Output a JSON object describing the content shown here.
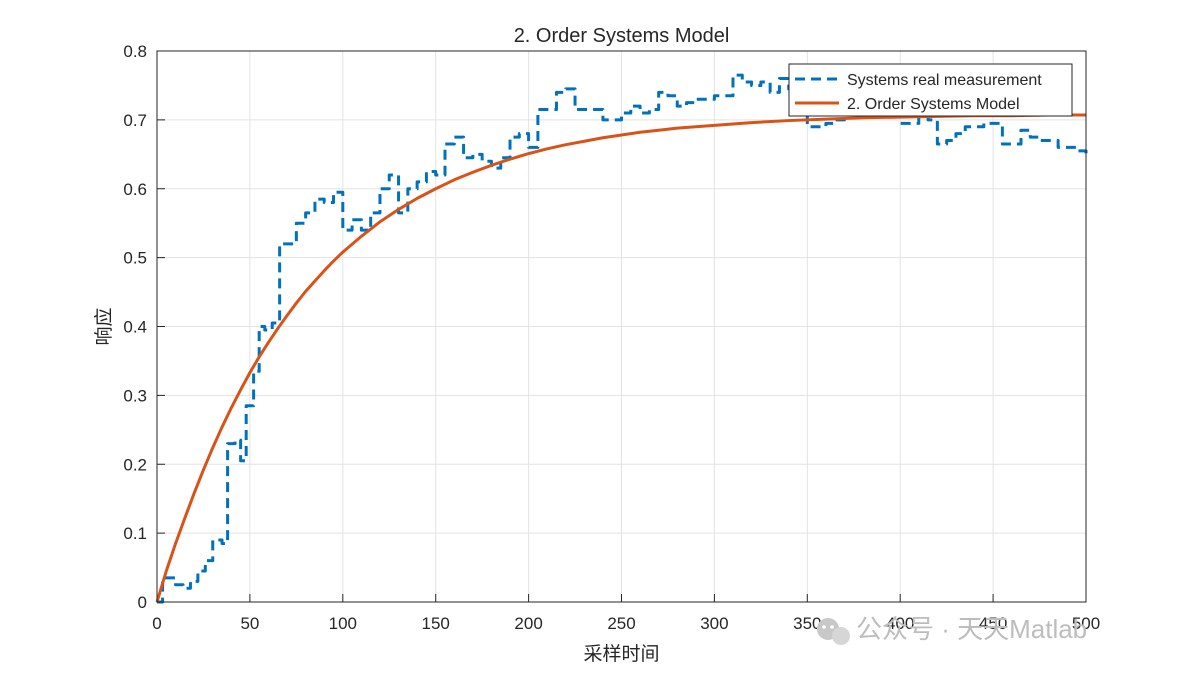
{
  "chart_data": {
    "type": "line",
    "title": "2. Order Systems Model",
    "xlabel": "采样时间",
    "ylabel": "响应",
    "xlim": [
      0,
      500
    ],
    "ylim": [
      0,
      0.8
    ],
    "xticks": [
      0,
      50,
      100,
      150,
      200,
      250,
      300,
      350,
      400,
      450,
      500
    ],
    "yticks": [
      0,
      0.1,
      0.2,
      0.3,
      0.4,
      0.5,
      0.6,
      0.7,
      0.8
    ],
    "xtick_labels": [
      "0",
      "50",
      "100",
      "150",
      "200",
      "250",
      "300",
      "350",
      "400",
      "450",
      "500"
    ],
    "ytick_labels": [
      "0",
      "0.1",
      "0.2",
      "0.3",
      "0.4",
      "0.5",
      "0.6",
      "0.7",
      "0.8"
    ],
    "grid": true,
    "legend_position": "top-right",
    "series": [
      {
        "name": "Systems real measurement",
        "style": "dashed-stairs",
        "color": "#0072BD",
        "x": [
          0,
          3,
          6,
          10,
          14,
          18,
          22,
          26,
          30,
          35,
          38,
          42,
          45,
          48,
          52,
          55,
          58,
          62,
          66,
          70,
          75,
          80,
          85,
          90,
          95,
          100,
          105,
          110,
          115,
          120,
          125,
          130,
          135,
          140,
          145,
          150,
          155,
          160,
          165,
          170,
          175,
          180,
          185,
          190,
          195,
          200,
          205,
          210,
          215,
          220,
          225,
          230,
          235,
          240,
          245,
          250,
          255,
          260,
          265,
          270,
          275,
          280,
          285,
          290,
          295,
          300,
          305,
          310,
          315,
          320,
          325,
          330,
          335,
          340,
          345,
          350,
          355,
          360,
          365,
          370,
          375,
          380,
          385,
          390,
          395,
          400,
          405,
          410,
          415,
          420,
          425,
          430,
          435,
          440,
          445,
          450,
          455,
          460,
          465,
          470,
          475,
          480,
          485,
          490,
          495,
          500
        ],
        "values": [
          0.0,
          0.035,
          0.035,
          0.025,
          0.02,
          0.03,
          0.045,
          0.06,
          0.09,
          0.085,
          0.23,
          0.235,
          0.205,
          0.285,
          0.335,
          0.4,
          0.395,
          0.405,
          0.52,
          0.52,
          0.55,
          0.565,
          0.585,
          0.58,
          0.595,
          0.54,
          0.555,
          0.54,
          0.565,
          0.6,
          0.62,
          0.565,
          0.6,
          0.61,
          0.625,
          0.62,
          0.665,
          0.675,
          0.645,
          0.65,
          0.64,
          0.63,
          0.645,
          0.675,
          0.68,
          0.66,
          0.715,
          0.715,
          0.74,
          0.745,
          0.715,
          0.715,
          0.715,
          0.7,
          0.7,
          0.71,
          0.72,
          0.71,
          0.715,
          0.74,
          0.735,
          0.72,
          0.725,
          0.73,
          0.73,
          0.735,
          0.735,
          0.765,
          0.755,
          0.75,
          0.755,
          0.74,
          0.76,
          0.745,
          0.74,
          0.69,
          0.69,
          0.695,
          0.7,
          0.71,
          0.71,
          0.715,
          0.72,
          0.71,
          0.705,
          0.695,
          0.695,
          0.705,
          0.7,
          0.665,
          0.67,
          0.68,
          0.69,
          0.69,
          0.695,
          0.695,
          0.665,
          0.665,
          0.685,
          0.675,
          0.67,
          0.67,
          0.66,
          0.66,
          0.655,
          0.645
        ]
      },
      {
        "name": "2. Order Systems Model",
        "style": "solid",
        "color": "#D95319",
        "x": [
          0,
          5,
          10,
          15,
          20,
          25,
          30,
          35,
          40,
          45,
          50,
          55,
          60,
          65,
          70,
          75,
          80,
          85,
          90,
          95,
          100,
          110,
          120,
          130,
          140,
          150,
          160,
          170,
          180,
          190,
          200,
          210,
          220,
          230,
          240,
          250,
          260,
          270,
          280,
          290,
          300,
          320,
          340,
          360,
          380,
          400,
          420,
          440,
          460,
          480,
          500
        ],
        "values": [
          0.0,
          0.045,
          0.085,
          0.122,
          0.158,
          0.192,
          0.224,
          0.254,
          0.282,
          0.308,
          0.333,
          0.356,
          0.377,
          0.397,
          0.416,
          0.434,
          0.451,
          0.466,
          0.481,
          0.495,
          0.508,
          0.531,
          0.552,
          0.57,
          0.586,
          0.6,
          0.613,
          0.624,
          0.634,
          0.643,
          0.651,
          0.658,
          0.664,
          0.669,
          0.674,
          0.678,
          0.682,
          0.685,
          0.688,
          0.69,
          0.692,
          0.696,
          0.699,
          0.701,
          0.703,
          0.704,
          0.705,
          0.706,
          0.706,
          0.707,
          0.707
        ]
      }
    ]
  },
  "watermark": {
    "icon": "wechat-icon",
    "text": "公众号 · 天天Matlab"
  }
}
